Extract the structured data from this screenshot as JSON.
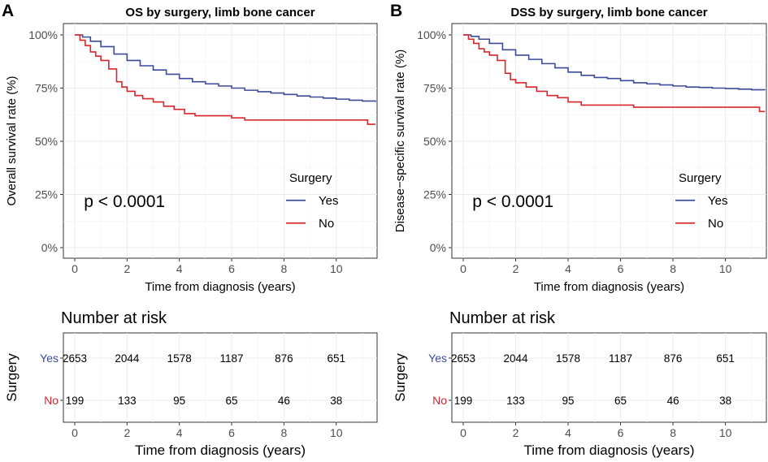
{
  "chart_data": [
    {
      "type": "line",
      "panel": "A",
      "title": "OS by surgery, limb bone cancer",
      "xlabel": "Time from diagnosis (years)",
      "ylabel": "Overall survival rate (%)",
      "xlim": [
        0,
        11.5
      ],
      "ylim": [
        0,
        100
      ],
      "x_ticks": [
        "0",
        "2",
        "4",
        "6",
        "8",
        "10"
      ],
      "y_ticks": [
        "0%",
        "25%",
        "50%",
        "75%",
        "100%"
      ],
      "p_value": "p < 0.0001",
      "legend": {
        "title": "Surgery",
        "labels": [
          "Yes",
          "No"
        ]
      },
      "series": [
        {
          "name": "Yes",
          "color": "#3b4b9a",
          "x": [
            0,
            0.3,
            0.6,
            1,
            1.5,
            2,
            2.5,
            3,
            3.5,
            4,
            4.5,
            5,
            5.5,
            6,
            6.5,
            7,
            7.5,
            8,
            8.5,
            9,
            9.5,
            10,
            10.5,
            11,
            11.5
          ],
          "y": [
            100,
            99,
            97,
            94.5,
            91,
            88,
            85.5,
            83.5,
            81.5,
            79.5,
            78,
            77,
            76,
            75,
            74,
            73.3,
            72.7,
            72,
            71.3,
            70.8,
            70.3,
            69.8,
            69.3,
            68.9,
            68.5
          ]
        },
        {
          "name": "No",
          "color": "#d9262a",
          "x": [
            0,
            0.2,
            0.4,
            0.6,
            0.8,
            1,
            1.3,
            1.6,
            1.8,
            2,
            2.3,
            2.6,
            3,
            3.4,
            3.8,
            4.2,
            4.6,
            5,
            5.5,
            6,
            6.5,
            7,
            8,
            9,
            10,
            11,
            11.2,
            11.5
          ],
          "y": [
            100,
            97.5,
            95,
            92,
            90,
            88,
            84,
            78,
            75.5,
            73.5,
            71.5,
            70,
            68.5,
            66.5,
            65,
            63,
            62,
            62,
            62,
            61,
            60,
            60,
            60,
            60,
            60,
            60,
            58,
            58
          ]
        }
      ],
      "risk_table": {
        "title": "Number at risk",
        "strata_label": "Surgery",
        "xlabel": "Time from diagnosis (years)",
        "times": [
          0,
          2,
          4,
          6,
          8,
          10
        ],
        "rows": [
          {
            "label": "Yes",
            "color": "#3b4b9a",
            "values": [
              "2653",
              "2044",
              "1578",
              "1187",
              "876",
              "651"
            ]
          },
          {
            "label": "No",
            "color": "#d9262a",
            "values": [
              "199",
              "133",
              "95",
              "65",
              "46",
              "38"
            ]
          }
        ]
      }
    },
    {
      "type": "line",
      "panel": "B",
      "title": "DSS by surgery, limb bone cancer",
      "xlabel": "Time from diagnosis (years)",
      "ylabel": "Disease−specific survival rate (%)",
      "xlim": [
        0,
        11.5
      ],
      "ylim": [
        0,
        100
      ],
      "x_ticks": [
        "0",
        "2",
        "4",
        "6",
        "8",
        "10"
      ],
      "y_ticks": [
        "0%",
        "25%",
        "50%",
        "75%",
        "100%"
      ],
      "p_value": "p < 0.0001",
      "legend": {
        "title": "Surgery",
        "labels": [
          "Yes",
          "No"
        ]
      },
      "series": [
        {
          "name": "Yes",
          "color": "#3b4b9a",
          "x": [
            0,
            0.3,
            0.6,
            1,
            1.5,
            2,
            2.5,
            3,
            3.5,
            4,
            4.5,
            5,
            5.5,
            6,
            6.5,
            7,
            7.5,
            8,
            8.5,
            9,
            9.5,
            10,
            10.5,
            11,
            11.5
          ],
          "y": [
            100,
            99.3,
            98,
            96,
            93,
            90.5,
            88.5,
            86.5,
            84.5,
            82.5,
            81,
            80,
            79.5,
            78.5,
            77.5,
            77,
            76.5,
            76,
            75.5,
            75.3,
            75,
            74.8,
            74.5,
            74.2,
            74
          ]
        },
        {
          "name": "No",
          "color": "#d9262a",
          "x": [
            0,
            0.2,
            0.4,
            0.6,
            0.8,
            1,
            1.3,
            1.6,
            1.8,
            2,
            2.4,
            2.8,
            3.2,
            3.6,
            4,
            4.5,
            5,
            5.5,
            6,
            6.5,
            7,
            8,
            9,
            10,
            11,
            11.3,
            11.5
          ],
          "y": [
            100,
            98,
            96,
            93.5,
            92,
            90.5,
            88,
            82,
            79,
            77.5,
            75.5,
            73.5,
            71.5,
            70.5,
            68.5,
            67,
            67,
            67,
            67,
            66,
            66,
            66,
            66,
            66,
            66,
            64,
            64
          ]
        }
      ],
      "risk_table": {
        "title": "Number at risk",
        "strata_label": "Surgery",
        "xlabel": "Time from diagnosis (years)",
        "times": [
          0,
          2,
          4,
          6,
          8,
          10
        ],
        "rows": [
          {
            "label": "Yes",
            "color": "#3b4b9a",
            "values": [
              "2653",
              "2044",
              "1578",
              "1187",
              "876",
              "651"
            ]
          },
          {
            "label": "No",
            "color": "#d9262a",
            "values": [
              "199",
              "133",
              "95",
              "65",
              "46",
              "38"
            ]
          }
        ]
      }
    }
  ]
}
